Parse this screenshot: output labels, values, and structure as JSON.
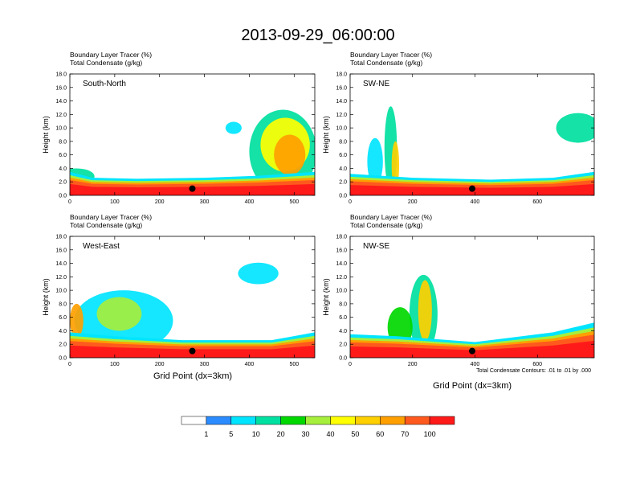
{
  "title": "2013-09-29_06:00:00",
  "chart_data": {
    "type": "heatmap",
    "title": "2013-09-29_06:00:00",
    "variable_label": "Boundary Layer Tracer",
    "variable_units": "(%)",
    "contour_label": "Total Condensate",
    "contour_units": "(g/kg)",
    "contour_note": "Total Condensate Contours: .01 to .01 by .000",
    "ylabel": "Height (km)",
    "xlabel": "Grid Point (dx=3km)",
    "ylim": [
      0,
      18
    ],
    "y_ticks": [
      "0.0",
      "2.0",
      "4.0",
      "6.0",
      "8.0",
      "10.0",
      "12.0",
      "14.0",
      "16.0",
      "18.0"
    ],
    "colorbar": {
      "levels": [
        1,
        5,
        10,
        20,
        30,
        40,
        50,
        60,
        70,
        100
      ],
      "colors": [
        "#ffffff",
        "#2a8cff",
        "#00e5ff",
        "#00e0a0",
        "#00d800",
        "#a6ef3c",
        "#ffff00",
        "#ffd000",
        "#ffa000",
        "#ff5a1e",
        "#ff1a1a"
      ]
    },
    "panels": [
      {
        "name": "South-North",
        "xlim": [
          0,
          546
        ],
        "x_ticks": [
          0,
          100,
          200,
          300,
          400,
          500
        ],
        "marker_x": 273,
        "surface_tracer_pct": 100,
        "boundary_layer_top_km": [
          {
            "x": 0,
            "z": 2.4
          },
          {
            "x": 50,
            "z": 1.8
          },
          {
            "x": 150,
            "z": 1.7
          },
          {
            "x": 300,
            "z": 1.8
          },
          {
            "x": 420,
            "z": 2.0
          },
          {
            "x": 546,
            "z": 2.4
          }
        ],
        "tracer_plumes": [
          {
            "x_center": 15,
            "x_halfwidth": 40,
            "z_center": 2.8,
            "z_halfheight": 1.2,
            "level_pct": 10
          },
          {
            "x_center": 475,
            "x_halfwidth": 75,
            "z_center": 6.5,
            "z_halfheight": 6.2,
            "level_pct": 10
          },
          {
            "x_center": 480,
            "x_halfwidth": 55,
            "z_center": 7.5,
            "z_halfheight": 4.0,
            "level_pct": 40
          },
          {
            "x_center": 490,
            "x_halfwidth": 35,
            "z_center": 6.0,
            "z_halfheight": 3.0,
            "level_pct": 60
          },
          {
            "x_center": 365,
            "x_halfwidth": 18,
            "z_center": 10.0,
            "z_halfheight": 0.9,
            "level_pct": 5
          }
        ]
      },
      {
        "name": "SW-NE",
        "xlim": [
          0,
          782
        ],
        "x_ticks": [
          0,
          200,
          400,
          600
        ],
        "marker_x": 391,
        "surface_tracer_pct": 100,
        "boundary_layer_top_km": [
          {
            "x": 0,
            "z": 2.2
          },
          {
            "x": 200,
            "z": 1.8
          },
          {
            "x": 450,
            "z": 1.6
          },
          {
            "x": 650,
            "z": 1.8
          },
          {
            "x": 782,
            "z": 2.4
          }
        ],
        "tracer_plumes": [
          {
            "x_center": 130,
            "x_halfwidth": 20,
            "z_center": 7.0,
            "z_halfheight": 6.2,
            "level_pct": 10
          },
          {
            "x_center": 145,
            "x_halfwidth": 12,
            "z_center": 4.5,
            "z_halfheight": 3.5,
            "level_pct": 50
          },
          {
            "x_center": 80,
            "x_halfwidth": 25,
            "z_center": 5.0,
            "z_halfheight": 3.5,
            "level_pct": 5
          },
          {
            "x_center": 730,
            "x_halfwidth": 70,
            "z_center": 10.0,
            "z_halfheight": 2.2,
            "level_pct": 10
          }
        ]
      },
      {
        "name": "West-East",
        "xlim": [
          0,
          546
        ],
        "x_ticks": [
          0,
          100,
          200,
          300,
          400,
          500
        ],
        "marker_x": 273,
        "surface_tracer_pct": 100,
        "boundary_layer_top_km": [
          {
            "x": 0,
            "z": 2.6
          },
          {
            "x": 100,
            "z": 2.2
          },
          {
            "x": 250,
            "z": 1.8
          },
          {
            "x": 450,
            "z": 1.8
          },
          {
            "x": 546,
            "z": 2.6
          }
        ],
        "tracer_plumes": [
          {
            "x_center": 120,
            "x_halfwidth": 110,
            "z_center": 5.5,
            "z_halfheight": 4.5,
            "level_pct": 5
          },
          {
            "x_center": 110,
            "x_halfwidth": 50,
            "z_center": 6.5,
            "z_halfheight": 2.5,
            "level_pct": 30
          },
          {
            "x_center": 15,
            "x_halfwidth": 15,
            "z_center": 5.5,
            "z_halfheight": 2.5,
            "level_pct": 60
          },
          {
            "x_center": 420,
            "x_halfwidth": 45,
            "z_center": 12.5,
            "z_halfheight": 1.6,
            "level_pct": 5
          }
        ]
      },
      {
        "name": "NW-SE",
        "xlim": [
          0,
          782
        ],
        "x_ticks": [
          0,
          200,
          400,
          600
        ],
        "marker_x": 391,
        "surface_tracer_pct": 100,
        "boundary_layer_top_km": [
          {
            "x": 0,
            "z": 2.4
          },
          {
            "x": 150,
            "z": 2.2
          },
          {
            "x": 400,
            "z": 1.6
          },
          {
            "x": 650,
            "z": 2.6
          },
          {
            "x": 782,
            "z": 3.6
          }
        ],
        "tracer_plumes": [
          {
            "x_center": 235,
            "x_halfwidth": 45,
            "z_center": 6.5,
            "z_halfheight": 5.8,
            "level_pct": 10
          },
          {
            "x_center": 240,
            "x_halfwidth": 22,
            "z_center": 7.0,
            "z_halfheight": 4.5,
            "level_pct": 50
          },
          {
            "x_center": 160,
            "x_halfwidth": 40,
            "z_center": 4.5,
            "z_halfheight": 3.0,
            "level_pct": 20
          },
          {
            "x_center": 730,
            "x_halfwidth": 55,
            "z_center": 3.2,
            "z_halfheight": 1.2,
            "level_pct": 10
          }
        ]
      }
    ]
  }
}
